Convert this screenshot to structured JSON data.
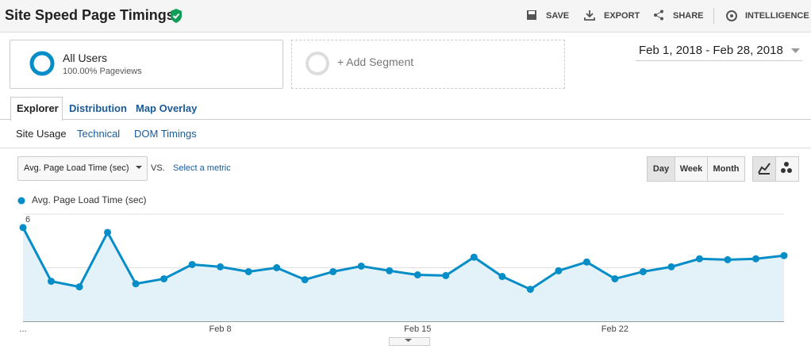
{
  "header": {
    "title": "Site Speed Page Timings",
    "actions": [
      "SAVE",
      "EXPORT",
      "SHARE",
      "INTELLIGENCE"
    ]
  },
  "segments": {
    "active": {
      "name": "All Users",
      "detail": "100.00% Pageviews"
    },
    "add": "+ Add Segment"
  },
  "date_range": "Feb 1, 2018 - Feb 28, 2018",
  "tabs": [
    "Explorer",
    "Distribution",
    "Map Overlay"
  ],
  "subtabs": [
    "Site Usage",
    "Technical",
    "DOM Timings"
  ],
  "controls": {
    "metric": "Avg. Page Load Time (sec)",
    "vs": "VS.",
    "select_metric": "Select a metric",
    "periods": [
      "Day",
      "Week",
      "Month"
    ]
  },
  "chart_data": {
    "type": "line",
    "fill": "#e3f1f8",
    "grid": true,
    "categories": [
      "...",
      null,
      null,
      null,
      null,
      null,
      null,
      "Feb 8",
      null,
      null,
      null,
      null,
      null,
      null,
      "Feb 15",
      null,
      null,
      null,
      null,
      null,
      null,
      "Feb 22",
      null,
      null,
      null,
      null,
      null,
      null
    ],
    "series": [
      {
        "name": "Avg. Page Load Time (sec)",
        "color": "#058dc7",
        "values": [
          5.25,
          2.24,
          1.93,
          4.98,
          2.1,
          2.38,
          3.18,
          3.05,
          2.78,
          3.0,
          2.33,
          2.78,
          3.09,
          2.83,
          2.6,
          2.56,
          3.59,
          2.51,
          1.79,
          2.83,
          3.32,
          2.38,
          2.78,
          3.05,
          3.5,
          3.45,
          3.5,
          3.68
        ]
      }
    ],
    "ylim": [
      0,
      6
    ],
    "yticks": [
      3,
      6
    ]
  }
}
